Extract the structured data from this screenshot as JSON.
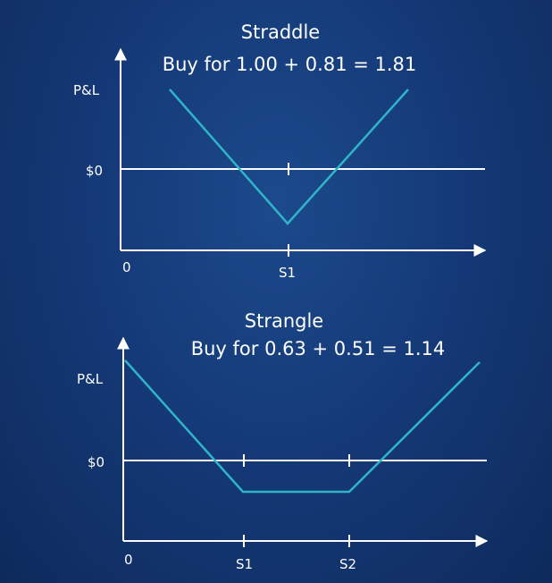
{
  "colors": {
    "axis": "#ffffff",
    "payoff": "#2fb4c8",
    "background": "#153a78"
  },
  "straddle": {
    "title": "Straddle",
    "subtitle": "Buy for 1.00 + 0.81 = 1.81",
    "y_label": "P&L",
    "zero_label": "$0",
    "origin_label": "0",
    "strikes": [
      "S1"
    ]
  },
  "strangle": {
    "title": "Strangle",
    "subtitle": "Buy for 0.63 + 0.51 = 1.14",
    "y_label": "P&L",
    "zero_label": "$0",
    "origin_label": "0",
    "strikes": [
      "S1",
      "S2"
    ]
  }
}
